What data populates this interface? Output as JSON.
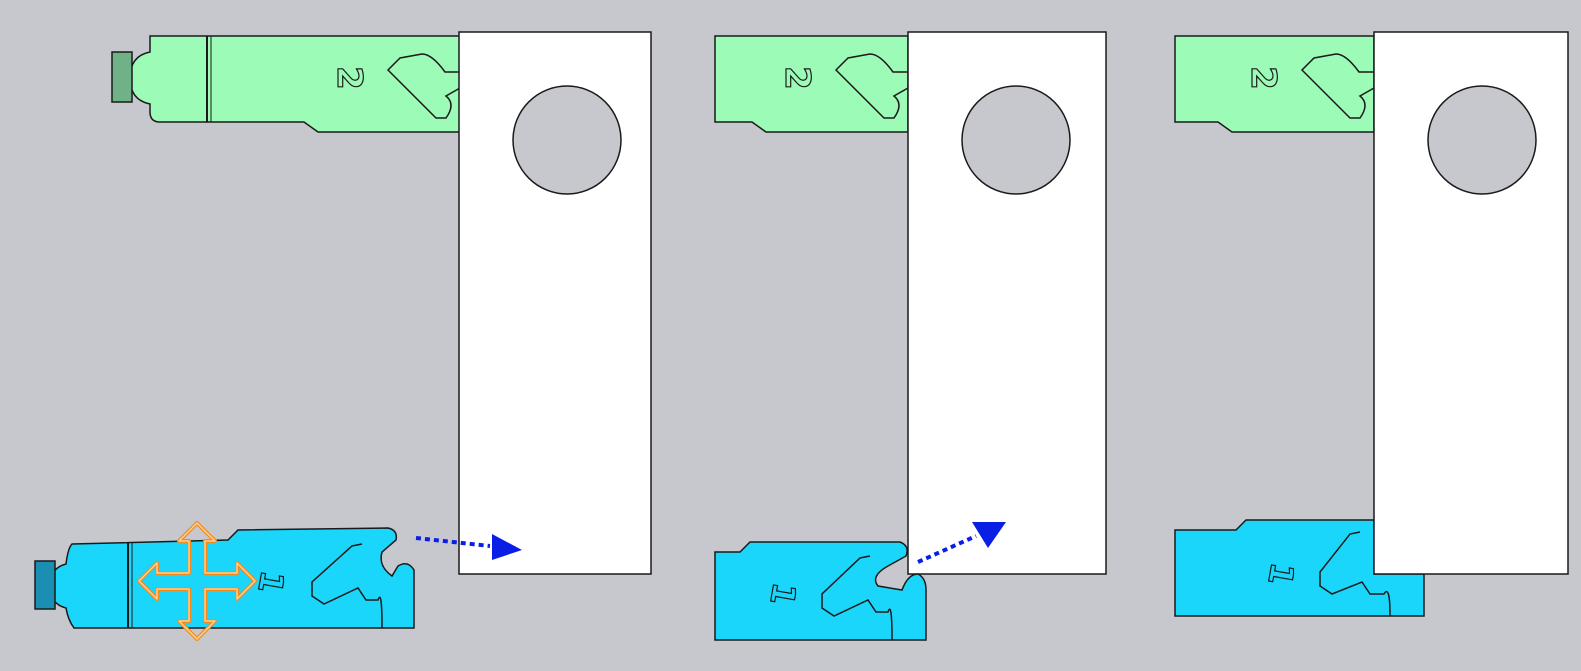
{
  "diagram": {
    "colors": {
      "background": "#c7c7ce",
      "board": "#ffffff",
      "outline": "#1a1a1a",
      "green_part": "#9bfbb7",
      "green_tab": "#6fb287",
      "blue_part": "#1bd6fb",
      "blue_tab": "#1b8fb3",
      "arrow": "#0a1fe6",
      "move_icon": "#f08c1e"
    },
    "labels": {
      "upper_part": "2",
      "lower_part": "1"
    },
    "icons": {
      "move": "move-cross-icon",
      "direction": "dotted-arrow-icon"
    },
    "steps": [
      {
        "name": "step-1",
        "state": "lower part positioned below, move to the board"
      },
      {
        "name": "step-2",
        "state": "lower part hooked to the board"
      },
      {
        "name": "step-3",
        "state": "lower part slid into place"
      }
    ]
  }
}
